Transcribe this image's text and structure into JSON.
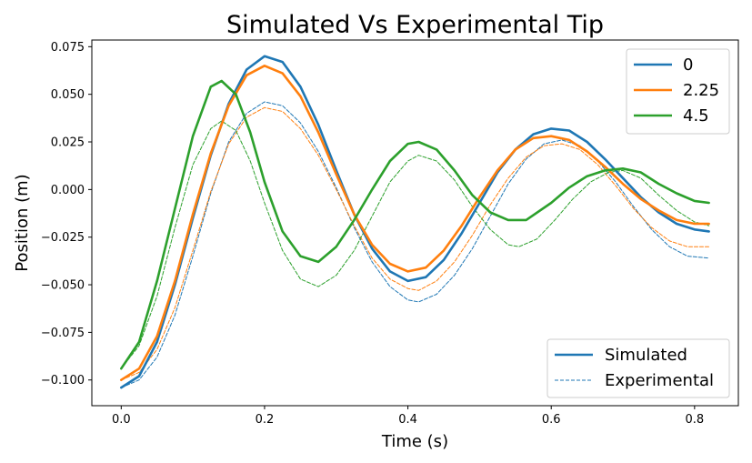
{
  "chart_data": {
    "type": "line",
    "title": "Simulated Vs Experimental Tip",
    "xlabel": "Time (s)",
    "ylabel": "Position (m)",
    "xlim": [
      -0.041,
      0.8611
    ],
    "ylim": [
      -0.1135,
      0.0785
    ],
    "x_ticks": [
      0.0,
      0.2,
      0.4,
      0.6,
      0.8
    ],
    "x_tick_labels": [
      "0.0",
      "0.2",
      "0.4",
      "0.6",
      "0.8"
    ],
    "y_ticks": [
      -0.1,
      -0.075,
      -0.05,
      -0.025,
      0.0,
      0.025,
      0.05,
      0.075
    ],
    "y_tick_labels": [
      "−0.100",
      "−0.075",
      "−0.050",
      "−0.025",
      "0.000",
      "0.025",
      "0.050",
      "0.075"
    ],
    "grid": false,
    "legends": {
      "series": {
        "placement": "top-right",
        "entries": [
          "0",
          "2.25",
          "4.5"
        ]
      },
      "style": {
        "placement": "bottom-right",
        "entries": [
          "Simulated",
          "Experimental"
        ]
      }
    },
    "series": [
      {
        "name": "0",
        "kind": "Simulated",
        "color": "#1f77b4",
        "dashed": false,
        "points": [
          [
            0.0,
            -0.104
          ],
          [
            0.025,
            -0.098
          ],
          [
            0.05,
            -0.08
          ],
          [
            0.075,
            -0.05
          ],
          [
            0.1,
            -0.015
          ],
          [
            0.125,
            0.018
          ],
          [
            0.15,
            0.045
          ],
          [
            0.175,
            0.063
          ],
          [
            0.2,
            0.07
          ],
          [
            0.225,
            0.067
          ],
          [
            0.25,
            0.054
          ],
          [
            0.275,
            0.034
          ],
          [
            0.3,
            0.01
          ],
          [
            0.325,
            -0.013
          ],
          [
            0.35,
            -0.031
          ],
          [
            0.375,
            -0.043
          ],
          [
            0.4,
            -0.048
          ],
          [
            0.425,
            -0.046
          ],
          [
            0.45,
            -0.037
          ],
          [
            0.475,
            -0.023
          ],
          [
            0.5,
            -0.007
          ],
          [
            0.525,
            0.009
          ],
          [
            0.55,
            0.021
          ],
          [
            0.575,
            0.029
          ],
          [
            0.6,
            0.032
          ],
          [
            0.625,
            0.031
          ],
          [
            0.65,
            0.025
          ],
          [
            0.675,
            0.016
          ],
          [
            0.7,
            0.006
          ],
          [
            0.725,
            -0.004
          ],
          [
            0.75,
            -0.012
          ],
          [
            0.775,
            -0.018
          ],
          [
            0.8,
            -0.021
          ],
          [
            0.82,
            -0.022
          ]
        ]
      },
      {
        "name": "2.25",
        "kind": "Simulated",
        "color": "#ff7f0e",
        "dashed": false,
        "points": [
          [
            0.0,
            -0.1
          ],
          [
            0.025,
            -0.094
          ],
          [
            0.05,
            -0.077
          ],
          [
            0.075,
            -0.048
          ],
          [
            0.1,
            -0.013
          ],
          [
            0.125,
            0.019
          ],
          [
            0.15,
            0.044
          ],
          [
            0.175,
            0.06
          ],
          [
            0.2,
            0.065
          ],
          [
            0.225,
            0.061
          ],
          [
            0.25,
            0.049
          ],
          [
            0.275,
            0.03
          ],
          [
            0.3,
            0.008
          ],
          [
            0.325,
            -0.013
          ],
          [
            0.35,
            -0.029
          ],
          [
            0.375,
            -0.039
          ],
          [
            0.4,
            -0.043
          ],
          [
            0.425,
            -0.041
          ],
          [
            0.45,
            -0.032
          ],
          [
            0.475,
            -0.019
          ],
          [
            0.5,
            -0.004
          ],
          [
            0.525,
            0.01
          ],
          [
            0.55,
            0.021
          ],
          [
            0.575,
            0.027
          ],
          [
            0.6,
            0.028
          ],
          [
            0.625,
            0.026
          ],
          [
            0.65,
            0.02
          ],
          [
            0.675,
            0.012
          ],
          [
            0.7,
            0.003
          ],
          [
            0.725,
            -0.005
          ],
          [
            0.75,
            -0.011
          ],
          [
            0.775,
            -0.016
          ],
          [
            0.8,
            -0.018
          ],
          [
            0.82,
            -0.018
          ]
        ]
      },
      {
        "name": "4.5",
        "kind": "Simulated",
        "color": "#2ca02c",
        "dashed": false,
        "points": [
          [
            0.0,
            -0.094
          ],
          [
            0.025,
            -0.08
          ],
          [
            0.05,
            -0.048
          ],
          [
            0.075,
            -0.01
          ],
          [
            0.1,
            0.028
          ],
          [
            0.125,
            0.054
          ],
          [
            0.14,
            0.057
          ],
          [
            0.16,
            0.05
          ],
          [
            0.18,
            0.03
          ],
          [
            0.2,
            0.004
          ],
          [
            0.225,
            -0.022
          ],
          [
            0.25,
            -0.035
          ],
          [
            0.275,
            -0.038
          ],
          [
            0.3,
            -0.03
          ],
          [
            0.325,
            -0.016
          ],
          [
            0.35,
            0.0
          ],
          [
            0.375,
            0.015
          ],
          [
            0.4,
            0.024
          ],
          [
            0.415,
            0.025
          ],
          [
            0.44,
            0.021
          ],
          [
            0.465,
            0.01
          ],
          [
            0.49,
            -0.003
          ],
          [
            0.515,
            -0.012
          ],
          [
            0.54,
            -0.016
          ],
          [
            0.565,
            -0.016
          ],
          [
            0.6,
            -0.007
          ],
          [
            0.625,
            0.001
          ],
          [
            0.65,
            0.007
          ],
          [
            0.675,
            0.01
          ],
          [
            0.7,
            0.011
          ],
          [
            0.725,
            0.009
          ],
          [
            0.75,
            0.003
          ],
          [
            0.775,
            -0.002
          ],
          [
            0.8,
            -0.006
          ],
          [
            0.82,
            -0.007
          ]
        ]
      },
      {
        "name": "0",
        "kind": "Experimental",
        "color": "#1f77b4",
        "dashed": true,
        "points": [
          [
            0.0,
            -0.104
          ],
          [
            0.025,
            -0.1
          ],
          [
            0.05,
            -0.088
          ],
          [
            0.075,
            -0.066
          ],
          [
            0.1,
            -0.035
          ],
          [
            0.125,
            -0.002
          ],
          [
            0.15,
            0.025
          ],
          [
            0.175,
            0.04
          ],
          [
            0.2,
            0.046
          ],
          [
            0.225,
            0.044
          ],
          [
            0.25,
            0.035
          ],
          [
            0.275,
            0.02
          ],
          [
            0.3,
            0.001
          ],
          [
            0.325,
            -0.02
          ],
          [
            0.35,
            -0.038
          ],
          [
            0.375,
            -0.051
          ],
          [
            0.4,
            -0.058
          ],
          [
            0.415,
            -0.059
          ],
          [
            0.44,
            -0.055
          ],
          [
            0.465,
            -0.045
          ],
          [
            0.49,
            -0.031
          ],
          [
            0.515,
            -0.014
          ],
          [
            0.54,
            0.003
          ],
          [
            0.565,
            0.016
          ],
          [
            0.59,
            0.024
          ],
          [
            0.615,
            0.026
          ],
          [
            0.64,
            0.023
          ],
          [
            0.665,
            0.015
          ],
          [
            0.69,
            0.004
          ],
          [
            0.715,
            -0.009
          ],
          [
            0.74,
            -0.021
          ],
          [
            0.765,
            -0.03
          ],
          [
            0.79,
            -0.035
          ],
          [
            0.82,
            -0.036
          ]
        ]
      },
      {
        "name": "2.25",
        "kind": "Experimental",
        "color": "#ff7f0e",
        "dashed": true,
        "points": [
          [
            0.0,
            -0.1
          ],
          [
            0.025,
            -0.096
          ],
          [
            0.05,
            -0.084
          ],
          [
            0.075,
            -0.062
          ],
          [
            0.1,
            -0.032
          ],
          [
            0.125,
            -0.001
          ],
          [
            0.15,
            0.024
          ],
          [
            0.175,
            0.038
          ],
          [
            0.2,
            0.043
          ],
          [
            0.225,
            0.041
          ],
          [
            0.25,
            0.032
          ],
          [
            0.275,
            0.018
          ],
          [
            0.3,
            0.0
          ],
          [
            0.325,
            -0.019
          ],
          [
            0.35,
            -0.036
          ],
          [
            0.375,
            -0.047
          ],
          [
            0.4,
            -0.052
          ],
          [
            0.415,
            -0.053
          ],
          [
            0.44,
            -0.048
          ],
          [
            0.465,
            -0.038
          ],
          [
            0.49,
            -0.024
          ],
          [
            0.515,
            -0.008
          ],
          [
            0.54,
            0.006
          ],
          [
            0.565,
            0.017
          ],
          [
            0.59,
            0.023
          ],
          [
            0.615,
            0.024
          ],
          [
            0.64,
            0.021
          ],
          [
            0.665,
            0.013
          ],
          [
            0.69,
            0.002
          ],
          [
            0.715,
            -0.01
          ],
          [
            0.74,
            -0.02
          ],
          [
            0.765,
            -0.027
          ],
          [
            0.79,
            -0.03
          ],
          [
            0.82,
            -0.03
          ]
        ]
      },
      {
        "name": "4.5",
        "kind": "Experimental",
        "color": "#2ca02c",
        "dashed": true,
        "points": [
          [
            0.0,
            -0.094
          ],
          [
            0.025,
            -0.082
          ],
          [
            0.05,
            -0.056
          ],
          [
            0.075,
            -0.02
          ],
          [
            0.1,
            0.013
          ],
          [
            0.125,
            0.032
          ],
          [
            0.14,
            0.036
          ],
          [
            0.16,
            0.031
          ],
          [
            0.18,
            0.015
          ],
          [
            0.2,
            -0.007
          ],
          [
            0.225,
            -0.032
          ],
          [
            0.25,
            -0.047
          ],
          [
            0.275,
            -0.051
          ],
          [
            0.3,
            -0.045
          ],
          [
            0.325,
            -0.032
          ],
          [
            0.35,
            -0.014
          ],
          [
            0.375,
            0.004
          ],
          [
            0.4,
            0.015
          ],
          [
            0.415,
            0.018
          ],
          [
            0.44,
            0.015
          ],
          [
            0.465,
            0.005
          ],
          [
            0.49,
            -0.009
          ],
          [
            0.515,
            -0.021
          ],
          [
            0.54,
            -0.029
          ],
          [
            0.555,
            -0.03
          ],
          [
            0.58,
            -0.026
          ],
          [
            0.605,
            -0.016
          ],
          [
            0.63,
            -0.005
          ],
          [
            0.655,
            0.004
          ],
          [
            0.68,
            0.009
          ],
          [
            0.7,
            0.01
          ],
          [
            0.725,
            0.006
          ],
          [
            0.75,
            -0.003
          ],
          [
            0.775,
            -0.011
          ],
          [
            0.8,
            -0.017
          ],
          [
            0.82,
            -0.019
          ]
        ]
      }
    ]
  }
}
